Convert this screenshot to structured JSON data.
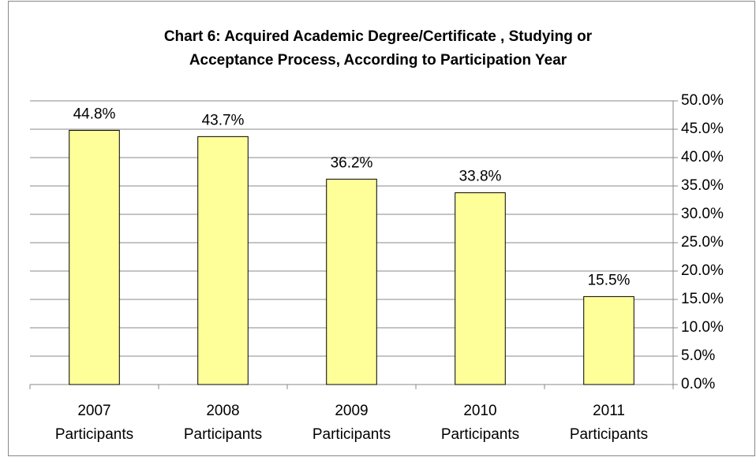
{
  "chart_data": {
    "type": "bar",
    "title": "Chart 6: Acquired Academic Degree/Certificate , Studying or\nAcceptance Process, According to Participation Year",
    "categories": [
      "2007\nParticipants",
      "2008\nParticipants",
      "2009\nParticipants",
      "2010\nParticipants",
      "2011\nParticipants"
    ],
    "values": [
      44.8,
      43.7,
      36.2,
      33.8,
      15.5
    ],
    "value_labels": [
      "44.8%",
      "43.7%",
      "36.2%",
      "33.8%",
      "15.5%"
    ],
    "color": "#ffff99",
    "ylim": [
      0,
      50
    ],
    "yticks": [
      {
        "value": 0,
        "label": "0.0%"
      },
      {
        "value": 5,
        "label": "5.0%"
      },
      {
        "value": 10,
        "label": "10.0%"
      },
      {
        "value": 15,
        "label": "15.0%"
      },
      {
        "value": 20,
        "label": "20.0%"
      },
      {
        "value": 25,
        "label": "25.0%"
      },
      {
        "value": 30,
        "label": "30.0%"
      },
      {
        "value": 35,
        "label": "35.0%"
      },
      {
        "value": 40,
        "label": "40.0%"
      },
      {
        "value": 45,
        "label": "45.0%"
      },
      {
        "value": 50,
        "label": "50.0%"
      }
    ],
    "grid": true
  }
}
